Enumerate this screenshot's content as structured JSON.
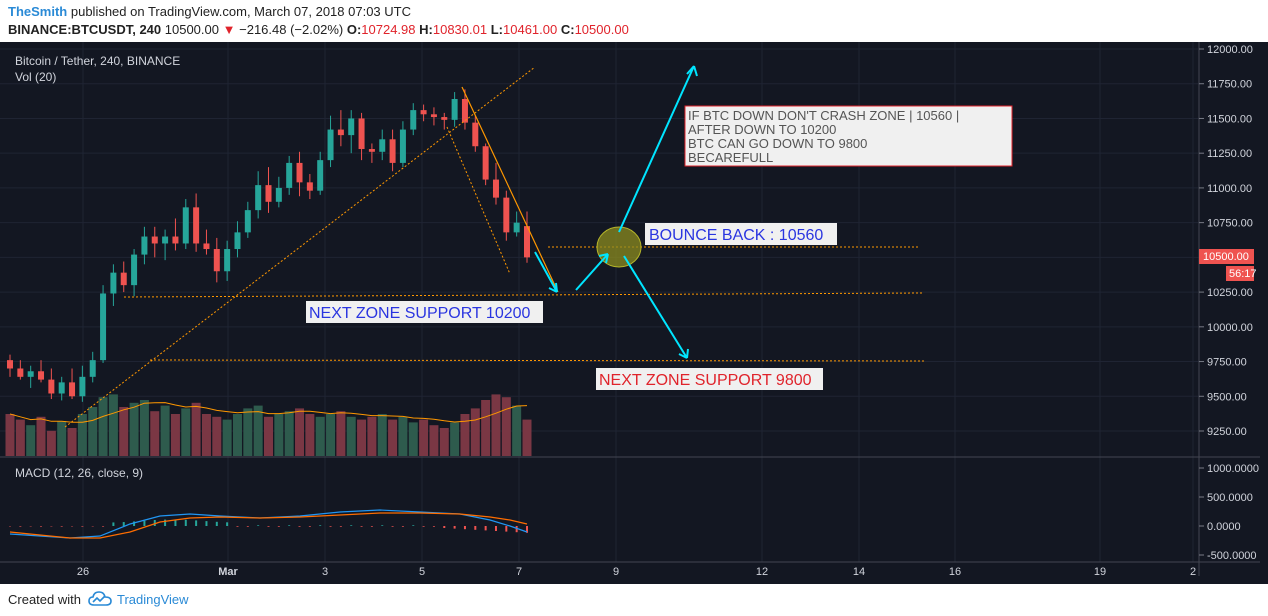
{
  "header": {
    "user": "TheSmith",
    "published": "published on TradingView.com, March 07, 2018 07:03 UTC",
    "symbol": "BINANCE:BTCUSDT, 240",
    "last": "10500.00",
    "change": "−216.48 (−2.02%)",
    "o_label": "O:",
    "o_value": "10724.98",
    "h_label": "H:",
    "h_value": "10830.01",
    "l_label": "L:",
    "l_value": "10461.00",
    "c_label": "C:",
    "c_value": "10500.00"
  },
  "panes": {
    "main_title": "Bitcoin / Tether, 240, BINANCE",
    "vol_title": "Vol (20)",
    "macd_title": "MACD (12, 26, close, 9)"
  },
  "price_badge": {
    "value": "10500.00",
    "countdown": "56:17"
  },
  "annotations": {
    "note_lines": [
      "IF BTC DOWN DON'T CRASH ZONE | 10560 |",
      "AFTER DOWN TO 10200",
      "BTC CAN GO DOWN TO 9800",
      "BECAREFULL"
    ],
    "bounce": "BOUNCE BACK : 10560",
    "support_10200": "NEXT ZONE SUPPORT 10200",
    "support_9800": "NEXT ZONE SUPPORT 9800"
  },
  "colors": {
    "background": "#131722",
    "up": "#26a69a",
    "down": "#ef5350",
    "vol_up": "#2e5b4d",
    "vol_down": "#7a3744",
    "trend": "#ff9800",
    "arrow": "#00e5ff",
    "macd": "#2196f3",
    "signal": "#ff6d00",
    "annotation_blue": "#2a35e0",
    "annotation_red": "#e0232b"
  },
  "footer": {
    "created": "Created with",
    "brand": "TradingView"
  },
  "chart_data": {
    "type": "candlestick",
    "title": "Bitcoin / Tether, 240, BINANCE",
    "y_ticks": [
      "12000.00",
      "11750.00",
      "11500.00",
      "11250.00",
      "11000.00",
      "10750.00",
      "10500.00",
      "10250.00",
      "10000.00",
      "9750.00",
      "9500.00",
      "9250.00"
    ],
    "ylim": [
      9150,
      12050
    ],
    "x_ticks": [
      "26",
      "Mar",
      "3",
      "5",
      "7",
      "9",
      "12",
      "14",
      "16",
      "19",
      "2"
    ],
    "macd_ticks": [
      "1000.0000",
      "500.0000",
      "0.0000",
      "-500.0000"
    ],
    "candles_ohlc": [
      [
        9760,
        9800,
        9640,
        9700
      ],
      [
        9700,
        9760,
        9620,
        9640
      ],
      [
        9640,
        9720,
        9560,
        9680
      ],
      [
        9680,
        9760,
        9600,
        9620
      ],
      [
        9620,
        9700,
        9480,
        9520
      ],
      [
        9520,
        9640,
        9470,
        9600
      ],
      [
        9600,
        9700,
        9480,
        9500
      ],
      [
        9500,
        9720,
        9460,
        9640
      ],
      [
        9640,
        9820,
        9600,
        9760
      ],
      [
        9760,
        10300,
        9740,
        10240
      ],
      [
        10240,
        10450,
        10150,
        10390
      ],
      [
        10390,
        10470,
        10250,
        10300
      ],
      [
        10300,
        10560,
        10220,
        10520
      ],
      [
        10520,
        10720,
        10450,
        10650
      ],
      [
        10650,
        10720,
        10500,
        10600
      ],
      [
        10600,
        10700,
        10480,
        10650
      ],
      [
        10650,
        10780,
        10550,
        10600
      ],
      [
        10600,
        10920,
        10560,
        10860
      ],
      [
        10860,
        10960,
        10540,
        10600
      ],
      [
        10600,
        10700,
        10520,
        10560
      ],
      [
        10560,
        10640,
        10320,
        10400
      ],
      [
        10400,
        10620,
        10330,
        10560
      ],
      [
        10560,
        10760,
        10500,
        10680
      ],
      [
        10680,
        10900,
        10640,
        10840
      ],
      [
        10840,
        11120,
        10780,
        11020
      ],
      [
        11020,
        11150,
        10820,
        10900
      ],
      [
        10900,
        11080,
        10860,
        11000
      ],
      [
        11000,
        11230,
        10950,
        11180
      ],
      [
        11180,
        11260,
        10940,
        11040
      ],
      [
        11040,
        11100,
        10920,
        10980
      ],
      [
        10980,
        11260,
        10950,
        11200
      ],
      [
        11200,
        11520,
        11150,
        11420
      ],
      [
        11420,
        11560,
        11300,
        11380
      ],
      [
        11380,
        11560,
        11250,
        11500
      ],
      [
        11500,
        11540,
        11200,
        11280
      ],
      [
        11280,
        11320,
        11180,
        11260
      ],
      [
        11260,
        11420,
        11200,
        11350
      ],
      [
        11350,
        11420,
        11120,
        11180
      ],
      [
        11180,
        11480,
        11150,
        11420
      ],
      [
        11420,
        11610,
        11380,
        11560
      ],
      [
        11560,
        11600,
        11480,
        11530
      ],
      [
        11530,
        11580,
        11450,
        11510
      ],
      [
        11510,
        11540,
        11420,
        11490
      ],
      [
        11490,
        11690,
        11440,
        11640
      ],
      [
        11640,
        11710,
        11420,
        11470
      ],
      [
        11470,
        11520,
        11260,
        11300
      ],
      [
        11300,
        11320,
        11020,
        11060
      ],
      [
        11060,
        11180,
        10880,
        10930
      ],
      [
        10930,
        10980,
        10620,
        10680
      ],
      [
        10680,
        10830,
        10650,
        10750
      ],
      [
        10724.98,
        10830.01,
        10461,
        10500
      ]
    ],
    "volume_bars": [
      30,
      26,
      22,
      28,
      18,
      25,
      20,
      30,
      35,
      42,
      44,
      35,
      38,
      40,
      32,
      36,
      30,
      34,
      38,
      30,
      28,
      26,
      30,
      34,
      36,
      28,
      30,
      32,
      34,
      30,
      28,
      30,
      32,
      28,
      26,
      28,
      30,
      26,
      28,
      24,
      26,
      22,
      20,
      24,
      30,
      34,
      40,
      44,
      42,
      36,
      26
    ],
    "levels": [
      {
        "label": "BOUNCE BACK : 10560",
        "value": 10560
      },
      {
        "label": "NEXT ZONE SUPPORT 10200",
        "value": 10200
      },
      {
        "label": "NEXT ZONE SUPPORT 9800",
        "value": 9800
      }
    ]
  }
}
